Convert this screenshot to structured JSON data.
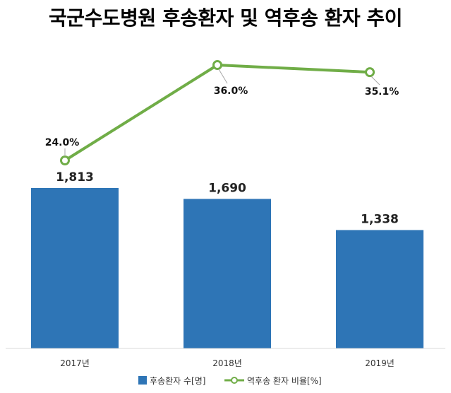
{
  "chart_data": {
    "title": "국군수도병원 후송환자 및 역후송 환자 추이",
    "type": "bar+line",
    "categories": [
      "2017년",
      "2018년",
      "2019년"
    ],
    "series": [
      {
        "name": "후송환자 수[명]",
        "type": "bar",
        "values": [
          1813,
          1690,
          1338
        ],
        "labels": [
          "1,813",
          "1,690",
          "1,338"
        ],
        "color": "#2E75B6"
      },
      {
        "name": "역후송 환자 비율[%]",
        "type": "line",
        "values": [
          24.0,
          36.0,
          35.1
        ],
        "labels": [
          "24.0%",
          "36.0%",
          "35.1%"
        ],
        "color": "#70AD47"
      }
    ],
    "legend_position": "bottom",
    "grid": false
  }
}
